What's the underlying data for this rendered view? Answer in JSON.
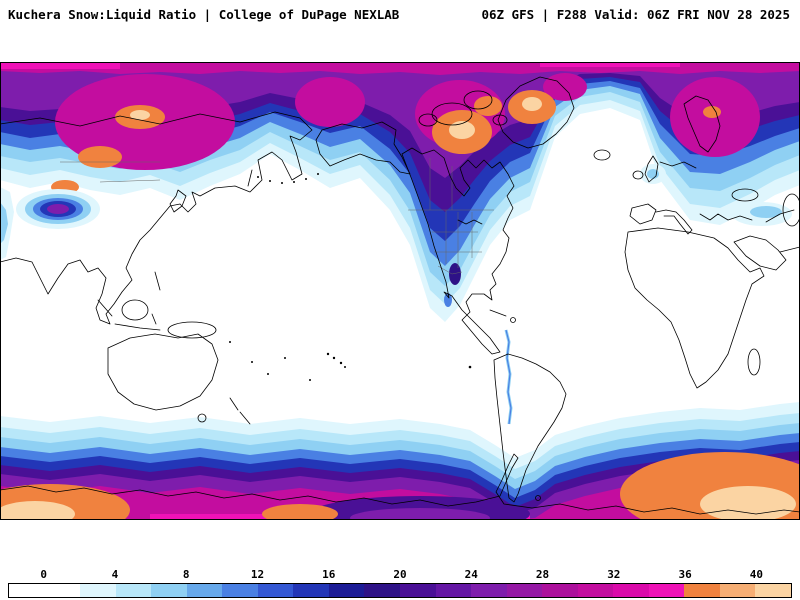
{
  "header": {
    "title": "Kuchera Snow:Liquid Ratio | College of DuPage NEXLAB",
    "model_info": "06Z GFS | F288 Valid: 06Z FRI NOV 28 2025"
  },
  "colorbar": {
    "tick_labels": [
      "0",
      "4",
      "8",
      "12",
      "16",
      "20",
      "24",
      "28",
      "32",
      "36",
      "40"
    ],
    "colors": [
      "#ffffff",
      "#ffffff",
      "#dff6fd",
      "#b8e7f9",
      "#8fd0f3",
      "#67a9eb",
      "#4a80e3",
      "#3458d3",
      "#2336b7",
      "#1c1c96",
      "#2e1287",
      "#4a1096",
      "#6416a4",
      "#7e1dac",
      "#9518a5",
      "#ac109c",
      "#c30d9f",
      "#da0aaa",
      "#ef12b7",
      "#f0823f",
      "#f6ae74",
      "#fbd4a3"
    ]
  },
  "chart_data": {
    "type": "heatmap",
    "title": "Kuchera Snow:Liquid Ratio",
    "source": "College of DuPage NEXLAB",
    "model_run": "06Z GFS",
    "forecast_hour": "F288",
    "valid_time": "06Z FRI NOV 28 2025",
    "colorbar_ticks": [
      0,
      4,
      8,
      12,
      16,
      20,
      24,
      28,
      32,
      36,
      40
    ],
    "colorbar_range": [
      0,
      40
    ],
    "legend_position": "bottom"
  }
}
